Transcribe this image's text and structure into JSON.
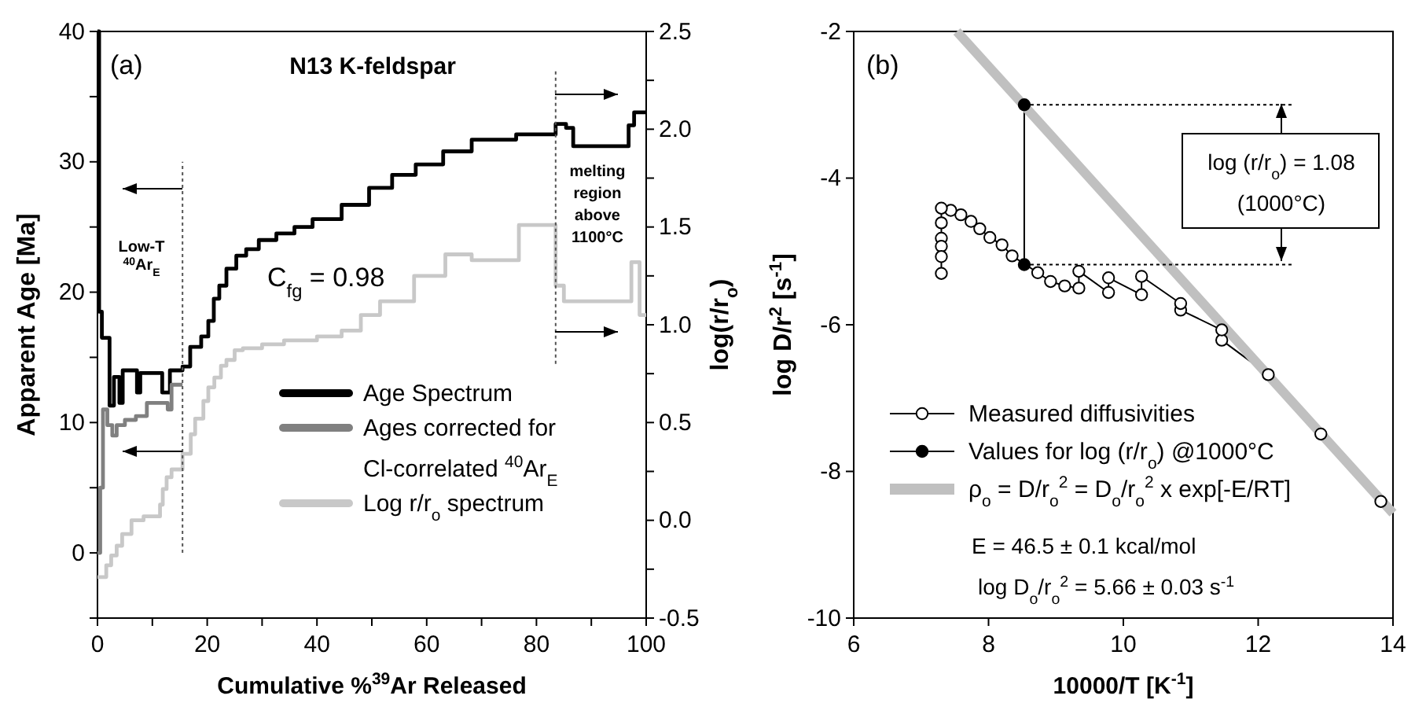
{
  "chart_data": [
    {
      "type": "step",
      "title": "N13 K-feldspar",
      "xlabel": "Cumulative %$^{39}$Ar Released",
      "ylabel": "Apparent Age [Ma]",
      "y2label": "log(r/r$_{o}$)",
      "annotations": [
        "(a)",
        "Low-T $^{40}$Ar$_{E}$",
        "C$_{fg}$ = 0.98",
        "melting region above 1100°C"
      ],
      "xlim": [
        0,
        100
      ],
      "xticks": [
        0,
        {
          "value": 10,
          "label": null
        },
        20,
        {
          "value": 30,
          "label": null
        },
        40,
        {
          "value": 50,
          "label": null
        },
        60,
        {
          "value": 70,
          "label": null
        },
        80,
        {
          "value": 90,
          "label": null
        },
        100
      ],
      "ylim": [
        -5,
        40
      ],
      "yticks": [
        0,
        {
          "value": 5,
          "label": null
        },
        10,
        {
          "value": 15,
          "label": null
        },
        20,
        {
          "value": 25,
          "label": null
        },
        30,
        {
          "value": 35,
          "label": null
        },
        40
      ],
      "y2lim": [
        -0.5,
        2.5
      ],
      "y2ticks": [
        -0.5,
        {
          "value": -0.25,
          "label": null
        },
        {
          "value": 0,
          "label": "0.0"
        },
        {
          "value": 0.25,
          "label": null
        },
        0.5,
        {
          "value": 0.75,
          "label": null
        },
        {
          "value": 1,
          "label": "1.0"
        },
        {
          "value": 1.25,
          "label": null
        },
        1.5,
        {
          "value": 1.75,
          "label": null
        },
        {
          "value": 2,
          "label": "2.0"
        },
        {
          "value": 2.25,
          "label": null
        },
        2.5
      ],
      "legend": "bottom right",
      "series": [
        {
          "name": "Age Spectrum",
          "color": "#000000",
          "x": [
            0,
            0.3,
            0.8,
            2.2,
            3.0,
            4.0,
            4.6,
            7.2,
            7.8,
            11.8,
            13.2,
            15.5,
            16.9,
            18.9,
            20.2,
            21.2,
            22.2,
            23.5,
            25.3,
            27.1,
            29.4,
            32.6,
            35.9,
            39.2,
            44.5,
            49.5,
            53.7,
            58,
            63,
            68.2,
            76.3,
            83.5,
            85.4,
            86.7,
            96.8,
            97.8,
            100
          ],
          "values": [
            40,
            18.5,
            16.5,
            11.3,
            13.5,
            11.5,
            14,
            12.3,
            13.8,
            12.3,
            14,
            14.3,
            15.8,
            16.6,
            17.8,
            19.5,
            20.5,
            21.8,
            22.8,
            23.3,
            24,
            24.5,
            25,
            25.6,
            26.7,
            28,
            29,
            29.8,
            30.8,
            31.7,
            32.1,
            32.9,
            32.6,
            31.2,
            32.8,
            33.8,
            33.8
          ]
        },
        {
          "name": "Ages corrected for Cl-correlated $^{40}$Ar$_{E}$",
          "color": "#808080",
          "x": [
            0,
            0.5,
            1.0,
            1.8,
            2.7,
            3.5,
            5.0,
            7.0,
            9.0,
            12.8,
            13.5,
            15.5
          ],
          "values": [
            0,
            5,
            11,
            9.8,
            9,
            9.8,
            10.2,
            10.5,
            11.5,
            11,
            12.9,
            12.9
          ]
        },
        {
          "name": "Log r/r$_{o}$ spectrum",
          "color": "#c8c8c8",
          "axis": "y2",
          "x": [
            0,
            1.6,
            2.5,
            3.5,
            4.5,
            6.2,
            8.4,
            11.4,
            11.9,
            12.6,
            13.5,
            15.5,
            17,
            17.8,
            19.3,
            20.2,
            21.3,
            22.5,
            23.5,
            25,
            26.5,
            30,
            34,
            40,
            44.5,
            48,
            51.5,
            57.7,
            63.4,
            68.2,
            76.8,
            83.5,
            85,
            97.3,
            98.8,
            100
          ],
          "values": [
            -0.29,
            -0.23,
            -0.18,
            -0.13,
            -0.07,
            0,
            0.02,
            0.08,
            0.16,
            0.22,
            0.26,
            0.34,
            0.44,
            0.52,
            0.61,
            0.68,
            0.73,
            0.79,
            0.82,
            0.87,
            0.88,
            0.9,
            0.92,
            0.94,
            0.97,
            1.05,
            1.12,
            1.25,
            1.36,
            1.33,
            1.51,
            1.2,
            1.12,
            1.32,
            1.05,
            1.05
          ]
        },
        {
          "type": "line",
          "color": "#555555",
          "line_style": "dotted",
          "x": [
            15.5,
            15.5
          ],
          "values": [
            0,
            30
          ]
        },
        {
          "type": "line",
          "color": "#555555",
          "line_style": "dotted",
          "axis": "y2",
          "x": [
            83.5,
            83.5
          ],
          "values": [
            0.8,
            2.3
          ]
        }
      ]
    },
    {
      "type": "line",
      "xlabel": "10000/T [K$^{-1}$]",
      "ylabel": "log D/r$^{2}$ [s$^{-1}$]",
      "annotations": [
        "(b)",
        "log (r/r$_{o}$) = 1.08 (1000°C)",
        "E = 46.5 ± 0.1 kcal/mol",
        "log D$_{o}$/r$_{o}$$^{2}$ = 5.66 ± 0.03 s$^{-1}$"
      ],
      "xlim": [
        6,
        14
      ],
      "xticks": [
        6,
        8,
        10,
        12,
        14
      ],
      "ylim": [
        -10,
        -2
      ],
      "yticks": [
        -10,
        -8,
        -6,
        -4,
        -2
      ],
      "legend": "bottom left",
      "series": [
        {
          "name": "Measured diffusivities",
          "color": "#000000",
          "marker": "circle",
          "x": [
            13.82,
            12.93,
            12.15,
            11.46,
            11.46,
            10.85,
            10.85,
            10.27,
            10.27,
            9.78,
            9.78,
            9.34,
            9.34,
            9.13,
            8.92,
            8.73,
            8.35,
            8.2,
            8.02,
            7.87,
            7.74,
            7.59,
            7.44,
            7.3,
            7.3,
            7.3,
            7.3,
            7.3,
            7.3
          ],
          "values": [
            -8.41,
            -7.49,
            -6.68,
            -6.21,
            -6.07,
            -5.8,
            -5.71,
            -5.34,
            -5.59,
            -5.36,
            -5.56,
            -5.27,
            -5.5,
            -5.47,
            -5.41,
            -5.29,
            -5.06,
            -4.91,
            -4.81,
            -4.69,
            -4.59,
            -4.5,
            -4.44,
            -4.41,
            -4.61,
            -4.82,
            -4.93,
            -5.07,
            -5.3
          ]
        },
        {
          "name": "Values for log (r/r$_{o}$) @1000°C",
          "color": "#000000",
          "marker": "circle",
          "x": [
            8.53,
            8.53
          ],
          "values": [
            -3.0,
            -5.18
          ]
        },
        {
          "name": "ρ$_{o}$ = D/r$_{o}$$^{2}$ = D$_{o}$/r$_{o}$$^{2}$ x exp[-E/RT]",
          "color": "#c0c0c0",
          "x": [
            7.53,
            14
          ],
          "values": [
            -2,
            -8.57
          ]
        },
        {
          "color": "#000000",
          "line_style": "dotted",
          "x": [
            8.53,
            12.53
          ],
          "values": [
            -3,
            -3
          ]
        },
        {
          "color": "#000000",
          "line_style": "dotted",
          "x": [
            8.53,
            12.53
          ],
          "values": [
            -5.18,
            -5.18
          ]
        }
      ]
    }
  ]
}
